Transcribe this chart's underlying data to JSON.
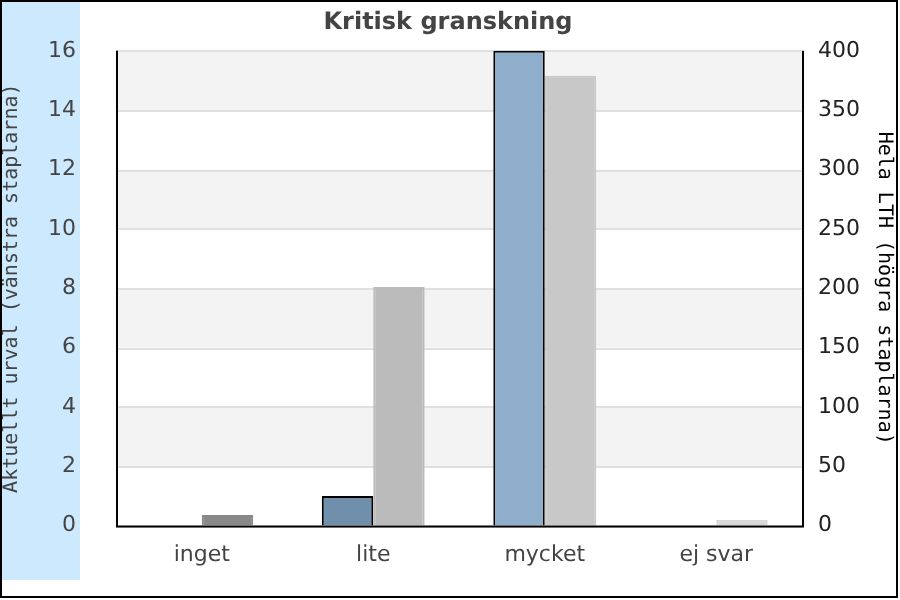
{
  "chart_data": {
    "type": "bar",
    "title": "Kritisk granskning",
    "ylabel": "Aktuellt urval (vänstra staplarna)",
    "y2label": "Hela LTH (högra staplarna)",
    "categories": [
      "inget",
      "lite",
      "mycket",
      "ej svar"
    ],
    "series": [
      {
        "colors": [
          "#6f8fab",
          "#6f8fab",
          "#8eaecb",
          "#8eaecb"
        ],
        "values": [
          0,
          1,
          16,
          0
        ]
      },
      {
        "axis": "y2",
        "colors": [
          "#888888",
          "#bbbbbb",
          "#c8c8c8",
          "#d8d8d8"
        ],
        "values": [
          9,
          201,
          379,
          5
        ]
      }
    ],
    "ylim": [
      0,
      16
    ],
    "yticks": [
      0,
      2,
      4,
      6,
      8,
      10,
      12,
      14,
      16
    ],
    "y2lim": [
      0,
      400
    ],
    "y2ticks": [
      0,
      50,
      100,
      150,
      200,
      250,
      300,
      350,
      400
    ],
    "grid": "y",
    "legend": false
  }
}
